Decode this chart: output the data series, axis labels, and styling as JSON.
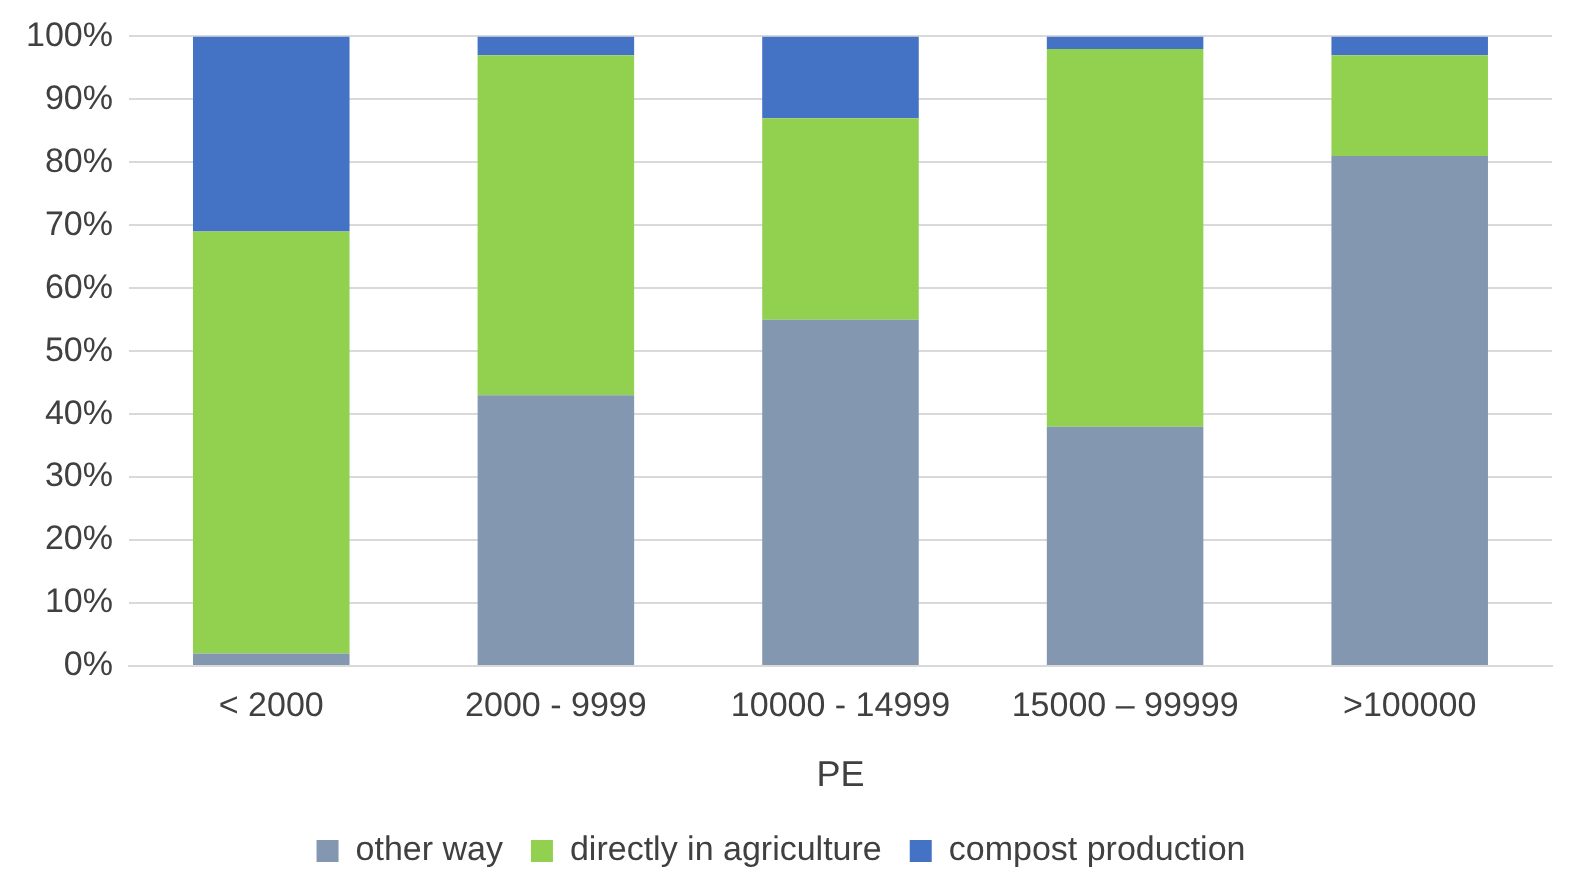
{
  "chart_data": {
    "type": "bar",
    "stacked": true,
    "xlabel": "PE",
    "categories": [
      "< 2000",
      "2000 - 9999",
      "10000 - 14999",
      "15000 – 99999",
      ">100000"
    ],
    "series": [
      {
        "name": "other way",
        "color": "#8497b0",
        "values": [
          2,
          43,
          55,
          38,
          81
        ]
      },
      {
        "name": "directly in agriculture",
        "color": "#92d050",
        "values": [
          67,
          54,
          32,
          60,
          16
        ]
      },
      {
        "name": "compost production",
        "color": "#4472c4",
        "values": [
          31,
          3,
          13,
          2,
          3
        ]
      }
    ],
    "ylim": [
      0,
      100
    ],
    "yticks": [
      {
        "value": 0,
        "label": "0%"
      },
      {
        "value": 10,
        "label": "10%"
      },
      {
        "value": 20,
        "label": "20%"
      },
      {
        "value": 30,
        "label": "30%"
      },
      {
        "value": 40,
        "label": "40%"
      },
      {
        "value": 50,
        "label": "50%"
      },
      {
        "value": 60,
        "label": "60%"
      },
      {
        "value": 70,
        "label": "70%"
      },
      {
        "value": 80,
        "label": "80%"
      },
      {
        "value": 90,
        "label": "90%"
      },
      {
        "value": 100,
        "label": "100%"
      }
    ],
    "grid": "y",
    "legend": "bottom"
  }
}
